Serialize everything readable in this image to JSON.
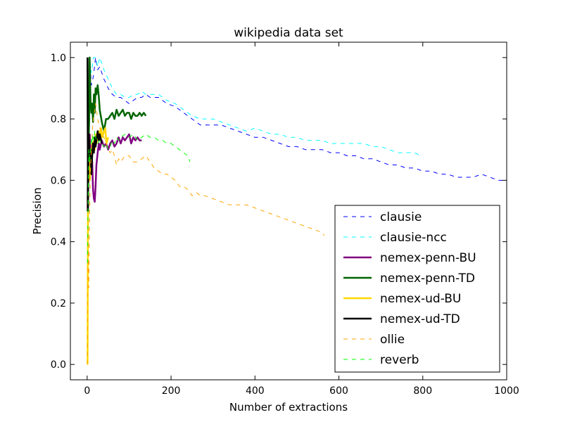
{
  "chart_data": {
    "type": "line",
    "title": "wikipedia data set",
    "xlabel": "Number of extractions",
    "ylabel": "Precision",
    "xlim": [
      -40,
      1000
    ],
    "ylim": [
      -0.05,
      1.05
    ],
    "xticks": [
      0,
      200,
      400,
      600,
      800,
      1000
    ],
    "yticks": [
      0.0,
      0.2,
      0.4,
      0.6,
      0.8,
      1.0
    ],
    "xtick_labels": [
      "0",
      "200",
      "400",
      "600",
      "800",
      "1000"
    ],
    "ytick_labels": [
      "0.0",
      "0.2",
      "0.4",
      "0.6",
      "0.8",
      "1.0"
    ],
    "grid": false,
    "legend": "lower-right",
    "series": [
      {
        "name": "clausie",
        "color": "#0000ff",
        "style": "dashed",
        "width": 1,
        "x": [
          1,
          3,
          6,
          10,
          15,
          20,
          25,
          30,
          40,
          50,
          60,
          70,
          80,
          90,
          100,
          110,
          120,
          130,
          140,
          150,
          170,
          190,
          210,
          230,
          250,
          260,
          270,
          280,
          300,
          320,
          340,
          360,
          380,
          400,
          420,
          440,
          460,
          480,
          500,
          520,
          540,
          560,
          580,
          600,
          620,
          640,
          660,
          680,
          700,
          720,
          740,
          760,
          780,
          800,
          820,
          840,
          860,
          880,
          900,
          920,
          940,
          960,
          980,
          1000
        ],
        "y": [
          1.0,
          0.67,
          1.0,
          0.91,
          0.94,
          1.0,
          0.96,
          0.97,
          0.93,
          0.9,
          0.88,
          0.87,
          0.87,
          0.86,
          0.85,
          0.86,
          0.87,
          0.87,
          0.88,
          0.87,
          0.87,
          0.85,
          0.84,
          0.82,
          0.8,
          0.79,
          0.78,
          0.78,
          0.78,
          0.78,
          0.77,
          0.76,
          0.75,
          0.74,
          0.74,
          0.73,
          0.72,
          0.71,
          0.71,
          0.7,
          0.7,
          0.7,
          0.69,
          0.69,
          0.68,
          0.68,
          0.67,
          0.67,
          0.66,
          0.65,
          0.65,
          0.64,
          0.64,
          0.63,
          0.63,
          0.62,
          0.62,
          0.61,
          0.61,
          0.61,
          0.62,
          0.61,
          0.6,
          0.6
        ]
      },
      {
        "name": "clausie-ncc",
        "color": "#00ffff",
        "style": "dashed",
        "width": 1,
        "x": [
          1,
          3,
          6,
          10,
          15,
          20,
          25,
          30,
          40,
          50,
          60,
          70,
          80,
          90,
          100,
          110,
          120,
          130,
          140,
          150,
          170,
          190,
          210,
          230,
          250,
          270,
          300,
          320,
          340,
          360,
          380,
          400,
          420,
          440,
          460,
          480,
          500,
          520,
          540,
          560,
          580,
          600,
          620,
          640,
          660,
          680,
          700,
          720,
          740,
          760,
          780,
          795
        ],
        "y": [
          1.0,
          0.8,
          1.0,
          0.95,
          1.0,
          1.0,
          0.97,
          1.0,
          0.96,
          0.93,
          0.9,
          0.88,
          0.88,
          0.87,
          0.87,
          0.88,
          0.88,
          0.89,
          0.88,
          0.88,
          0.88,
          0.86,
          0.85,
          0.83,
          0.81,
          0.8,
          0.8,
          0.79,
          0.78,
          0.77,
          0.76,
          0.77,
          0.76,
          0.75,
          0.75,
          0.74,
          0.74,
          0.73,
          0.73,
          0.73,
          0.72,
          0.72,
          0.72,
          0.72,
          0.72,
          0.71,
          0.71,
          0.7,
          0.69,
          0.69,
          0.69,
          0.68
        ]
      },
      {
        "name": "nemex-penn-BU",
        "color": "#800080",
        "style": "solid",
        "width": 2.5,
        "x": [
          1,
          2,
          4,
          6,
          8,
          10,
          12,
          14,
          16,
          18,
          20,
          22,
          25,
          28,
          30,
          35,
          40,
          45,
          50,
          55,
          60,
          65,
          70,
          75,
          80,
          85,
          90,
          95,
          100,
          105,
          110,
          115,
          120,
          125,
          130
        ],
        "y": [
          0.5,
          0.67,
          0.6,
          0.75,
          0.7,
          0.69,
          0.66,
          0.57,
          0.54,
          0.53,
          0.58,
          0.65,
          0.69,
          0.72,
          0.7,
          0.73,
          0.71,
          0.72,
          0.7,
          0.72,
          0.73,
          0.71,
          0.72,
          0.74,
          0.72,
          0.74,
          0.73,
          0.74,
          0.75,
          0.72,
          0.74,
          0.73,
          0.74,
          0.73,
          0.73
        ]
      },
      {
        "name": "nemex-penn-TD",
        "color": "#006400",
        "style": "solid",
        "width": 2.5,
        "x": [
          1,
          2,
          3,
          4,
          5,
          6,
          8,
          10,
          12,
          14,
          16,
          18,
          20,
          22,
          25,
          28,
          30,
          35,
          40,
          45,
          50,
          55,
          60,
          65,
          70,
          75,
          80,
          85,
          90,
          95,
          100,
          105,
          110,
          115,
          120,
          125,
          130,
          135,
          140
        ],
        "y": [
          1.0,
          0.5,
          0.67,
          0.75,
          0.8,
          1.0,
          0.86,
          0.82,
          0.85,
          0.79,
          0.88,
          0.82,
          0.9,
          0.88,
          0.91,
          0.87,
          0.83,
          0.79,
          0.76,
          0.8,
          0.8,
          0.81,
          0.82,
          0.8,
          0.83,
          0.81,
          0.82,
          0.83,
          0.81,
          0.82,
          0.82,
          0.8,
          0.82,
          0.81,
          0.81,
          0.82,
          0.81,
          0.82,
          0.81
        ]
      },
      {
        "name": "nemex-ud-BU",
        "color": "#ffd700",
        "style": "solid",
        "width": 2.5,
        "x": [
          1,
          2,
          3,
          4,
          6,
          8,
          10,
          12,
          14,
          16,
          18,
          20,
          22,
          25,
          28,
          30,
          33,
          36,
          40,
          43,
          46,
          50
        ],
        "y": [
          0.0,
          0.5,
          0.67,
          0.75,
          0.6,
          0.63,
          0.7,
          0.71,
          0.72,
          0.73,
          0.7,
          0.75,
          0.72,
          0.74,
          0.76,
          0.73,
          0.77,
          0.74,
          0.76,
          0.77,
          0.72,
          0.74
        ]
      },
      {
        "name": "nemex-ud-TD",
        "color": "#000000",
        "style": "solid",
        "width": 2.5,
        "x": [
          1,
          2,
          3,
          4,
          6,
          8,
          10,
          12,
          14,
          16,
          18,
          20,
          22,
          25,
          28,
          30,
          35
        ],
        "y": [
          1.0,
          0.5,
          0.67,
          0.75,
          0.67,
          0.7,
          0.62,
          0.68,
          0.72,
          0.69,
          0.74,
          0.71,
          0.73,
          0.76,
          0.73,
          0.75,
          0.72
        ]
      },
      {
        "name": "ollie",
        "color": "#ffa500",
        "style": "dashed",
        "width": 1,
        "x": [
          1,
          2,
          3,
          4,
          6,
          8,
          10,
          12,
          14,
          16,
          18,
          20,
          25,
          30,
          35,
          40,
          45,
          50,
          55,
          60,
          65,
          70,
          75,
          80,
          90,
          100,
          110,
          120,
          130,
          140,
          150,
          160,
          170,
          180,
          190,
          200,
          210,
          220,
          230,
          240,
          250,
          260,
          270,
          280,
          300,
          320,
          340,
          360,
          380,
          400,
          420,
          440,
          460,
          480,
          500,
          520,
          540,
          560,
          565
        ],
        "y": [
          0.0,
          0.5,
          0.33,
          0.25,
          0.5,
          0.63,
          0.7,
          0.75,
          0.79,
          0.81,
          0.83,
          0.85,
          0.8,
          0.77,
          0.75,
          0.74,
          0.72,
          0.7,
          0.69,
          0.7,
          0.68,
          0.65,
          0.67,
          0.66,
          0.68,
          0.68,
          0.66,
          0.66,
          0.67,
          0.68,
          0.66,
          0.64,
          0.63,
          0.62,
          0.62,
          0.61,
          0.6,
          0.58,
          0.58,
          0.57,
          0.55,
          0.56,
          0.55,
          0.55,
          0.54,
          0.53,
          0.52,
          0.52,
          0.52,
          0.51,
          0.5,
          0.49,
          0.48,
          0.47,
          0.46,
          0.45,
          0.44,
          0.43,
          0.42
        ]
      },
      {
        "name": "reverb",
        "color": "#00ff00",
        "style": "dashed",
        "width": 1,
        "x": [
          1,
          2,
          3,
          4,
          6,
          8,
          10,
          12,
          14,
          16,
          18,
          20,
          25,
          30,
          35,
          40,
          45,
          50,
          55,
          60,
          65,
          70,
          75,
          80,
          90,
          100,
          110,
          120,
          130,
          140,
          150,
          160,
          170,
          180,
          190,
          200,
          210,
          220,
          230,
          240,
          245
        ],
        "y": [
          0.33,
          0.5,
          0.6,
          0.7,
          0.66,
          0.7,
          0.74,
          0.72,
          0.75,
          0.73,
          0.76,
          0.74,
          0.72,
          0.73,
          0.72,
          0.71,
          0.72,
          0.7,
          0.71,
          0.73,
          0.72,
          0.74,
          0.73,
          0.74,
          0.75,
          0.74,
          0.75,
          0.73,
          0.74,
          0.75,
          0.74,
          0.74,
          0.73,
          0.73,
          0.72,
          0.72,
          0.71,
          0.7,
          0.69,
          0.68,
          0.66
        ]
      }
    ]
  }
}
